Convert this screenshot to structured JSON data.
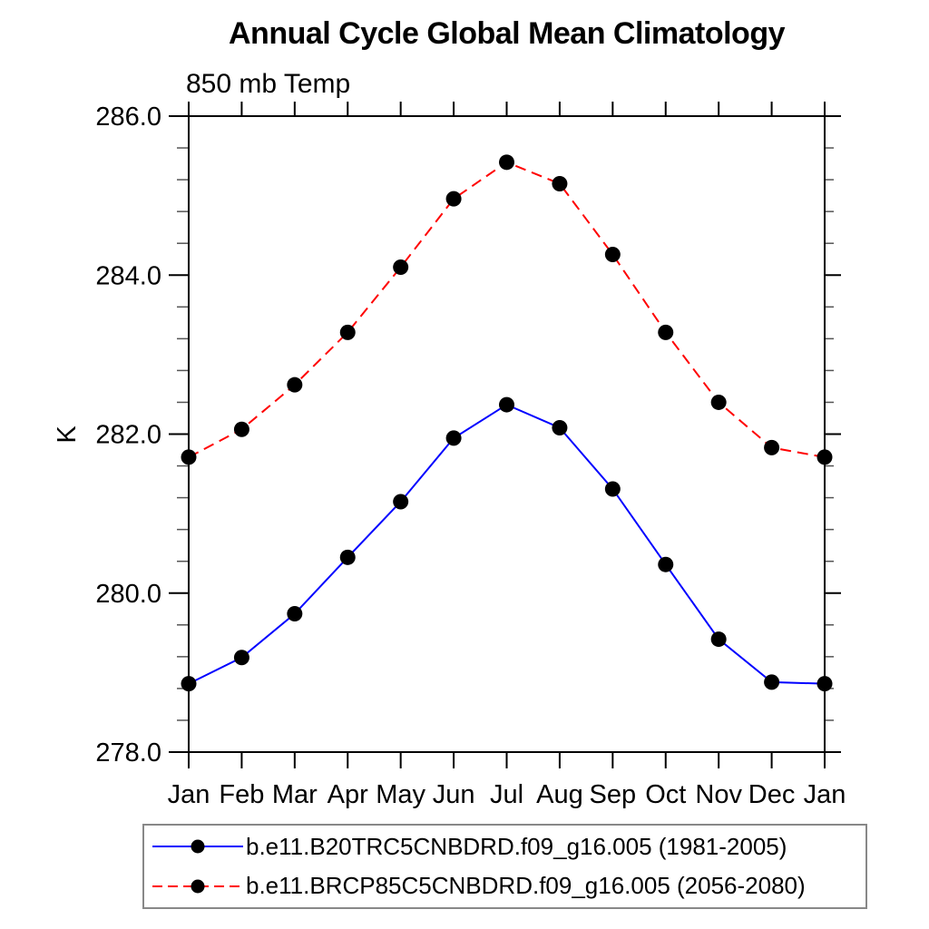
{
  "chart_data": {
    "type": "line",
    "title": "Annual Cycle Global Mean Climatology",
    "subtitle": "850 mb Temp",
    "ylabel": "K",
    "xlabel": "",
    "categories": [
      "Jan",
      "Feb",
      "Mar",
      "Apr",
      "May",
      "Jun",
      "Jul",
      "Aug",
      "Sep",
      "Oct",
      "Nov",
      "Dec",
      "Jan"
    ],
    "ylim": [
      278.0,
      286.0
    ],
    "ytick_major_values": [
      286.0,
      284.0,
      282.0,
      280.0,
      278.0
    ],
    "ytick_major_labels": [
      "286.0",
      "284.0",
      "282.0",
      "280.0",
      "278.0"
    ],
    "ytick_minor_step": 0.4,
    "grid": "off",
    "legend_position": "bottom",
    "marker": "filled-circle",
    "marker_color": "#000000",
    "axis_color": "#000000",
    "series": [
      {
        "name": "b.e11.B20TRC5CNBDRD.f09_g16.005 (1981-2005)",
        "color": "#0000ff",
        "line_style": "solid",
        "values": [
          278.86,
          279.19,
          279.74,
          280.45,
          281.15,
          281.95,
          282.37,
          282.08,
          281.31,
          280.36,
          279.42,
          278.88,
          278.86
        ]
      },
      {
        "name": "b.e11.BRCP85C5CNBDRD.f09_g16.005 (2056-2080)",
        "color": "#ff0000",
        "line_style": "dashed",
        "values": [
          281.71,
          282.06,
          282.62,
          283.28,
          284.1,
          284.96,
          285.42,
          285.15,
          284.26,
          283.28,
          282.4,
          281.83,
          281.71
        ]
      }
    ]
  }
}
